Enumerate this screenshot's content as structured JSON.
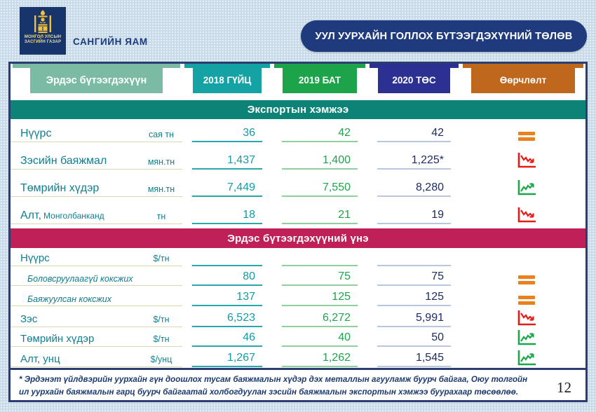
{
  "header": {
    "logo_line1": "МОНГОЛ УЛСЫН",
    "logo_line2": "ЗАСГИЙН ГАЗАР",
    "ministry": "САНГИЙН ЯАМ",
    "title": "УУЛ УУРХАЙН ГОЛЛОХ БҮТЭЭГДЭХҮҮНИЙ ТӨЛӨВ"
  },
  "table": {
    "columns": [
      "Эрдэс бүтээгдэхүүн",
      "2018 ГҮЙЦ",
      "2019 БАТ",
      "2020 ТӨС",
      "Өөрчлөлт"
    ],
    "sections": [
      {
        "title": "Экспортын хэмжээ",
        "rows": [
          {
            "name": "Нүүрс",
            "unit": "сая тн",
            "v2018": "36",
            "v2019": "42",
            "v2020": "42",
            "trend": "equal"
          },
          {
            "name": "Зэсийн баяжмал",
            "unit": "мян.тн",
            "v2018": "1,437",
            "v2019": "1,400",
            "v2020": "1,225*",
            "trend": "down"
          },
          {
            "name": "Төмрийн хүдэр",
            "unit": "мян.тн",
            "v2018": "7,449",
            "v2019": "7,550",
            "v2020": "8,280",
            "trend": "up"
          },
          {
            "name": "Алт,",
            "name_small": "Монголбанканд",
            "unit": "тн",
            "v2018": "18",
            "v2019": "21",
            "v2020": "19",
            "trend": "down"
          }
        ]
      },
      {
        "title": "Эрдэс бүтээгдэхүүний үнэ",
        "rows": [
          {
            "name": "Нүүрс",
            "unit": "$/тн",
            "v2018": "",
            "v2019": "",
            "v2020": "",
            "trend": "none"
          },
          {
            "name": "Боловсруулаагүй коксжих",
            "sub": true,
            "unit": "",
            "v2018": "80",
            "v2019": "75",
            "v2020": "75",
            "trend": "equal"
          },
          {
            "name": "Баяжуулсан коксжих",
            "sub": true,
            "unit": "",
            "v2018": "137",
            "v2019": "125",
            "v2020": "125",
            "trend": "equal"
          },
          {
            "name": "Зэс",
            "unit": "$/тн",
            "v2018": "6,523",
            "v2019": "6,272",
            "v2020": "5,991",
            "trend": "down"
          },
          {
            "name": "Төмрийн хүдэр",
            "unit": "$/тн",
            "v2018": "46",
            "v2019": "40",
            "v2020": "50",
            "trend": "up"
          },
          {
            "name": "Алт, унц",
            "unit": "$/унц",
            "v2018": "1,267",
            "v2019": "1,262",
            "v2020": "1,545",
            "trend": "up"
          }
        ]
      }
    ]
  },
  "footnote": "* Эрдэнэт үйлдвэрийн уурхайн гүн доошлох тусам баяжмалын хүдэр дэх металлын агууламж буурч байгаа, Оюу толгойн ил уурхайн баяжмалын гарц буурч байгаатай холбогдуулан зэсийн баяжмалын экспортын хэмжээ буурахаар төсөөлөө.",
  "page_number": "12",
  "colors": {
    "background": "#c9dbe9",
    "navy": "#1f3b7d",
    "tab_products": "#7bbaa3",
    "tab_2018": "#14a2a4",
    "tab_2019": "#1da44a",
    "tab_2020": "#2c3091",
    "tab_change": "#bf671c",
    "band_export": "#0c8376",
    "band_price": "#bf2057",
    "text_2018": "#149ba4",
    "text_2019": "#1ea44b",
    "text_2020": "#1d2b66",
    "trend_equal": "#e8821e",
    "trend_down": "#e41b17",
    "trend_up": "#1ea44b"
  }
}
